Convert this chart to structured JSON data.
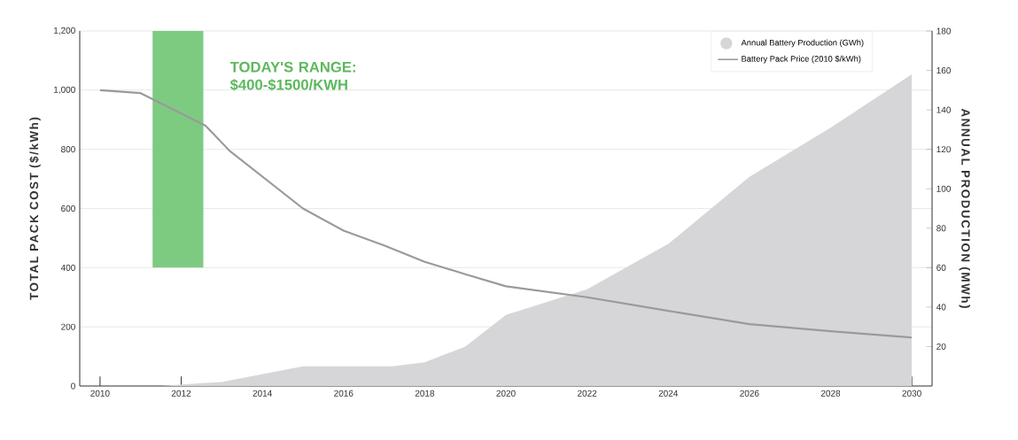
{
  "chart_data": {
    "type": "area",
    "xlim": [
      2009.5,
      2030.5
    ],
    "xticks": [
      2010,
      2012,
      2014,
      2016,
      2018,
      2020,
      2022,
      2024,
      2026,
      2028,
      2030
    ],
    "ylim": [
      0,
      1200
    ],
    "yticks": [
      0,
      200,
      400,
      600,
      800,
      {
        "value": 1000,
        "label": "1,000"
      },
      {
        "value": 1200,
        "label": "1,200"
      }
    ],
    "y2lim": [
      0,
      180
    ],
    "y2ticks": [
      20,
      40,
      60,
      80,
      100,
      120,
      140,
      160,
      180
    ],
    "ylabel": "TOTAL PACK COST ($/kWh)",
    "y2label": "ANNUAL PRODUCTION (MWh)",
    "grid": "y",
    "legend": "top right",
    "annotations": [
      "TODAY'S RANGE: $400-$1500/KWH"
    ],
    "series": [
      {
        "name": "Annual Battery Production (GWh)",
        "axis": "y2",
        "color": "#d6d6d8",
        "x": [
          2011.5,
          2012.5,
          2013,
          2015,
          2017.2,
          2018,
          2019,
          2020,
          2022,
          2024,
          2026,
          2028,
          2030
        ],
        "values": [
          0,
          1.5,
          2,
          10,
          10,
          12,
          20,
          36,
          49,
          72,
          106,
          131,
          158
        ]
      },
      {
        "name": "Battery Pack Price (2010 $/kWh)",
        "type": "line",
        "color": "#9a9a9a",
        "x": [
          2010,
          2011,
          2012.6,
          2013.2,
          2015,
          2016,
          2017,
          2018,
          2019,
          2020,
          2022,
          2024,
          2026,
          2028,
          2030
        ],
        "values": [
          1000,
          990,
          880,
          794,
          600,
          525,
          475,
          420,
          378,
          337,
          300,
          254,
          209,
          185,
          164
        ]
      },
      {
        "type": "bar",
        "color": "#7dcb81",
        "x": [
          2011.92
        ],
        "base": [
          400
        ],
        "values": [
          800
        ]
      }
    ]
  }
}
